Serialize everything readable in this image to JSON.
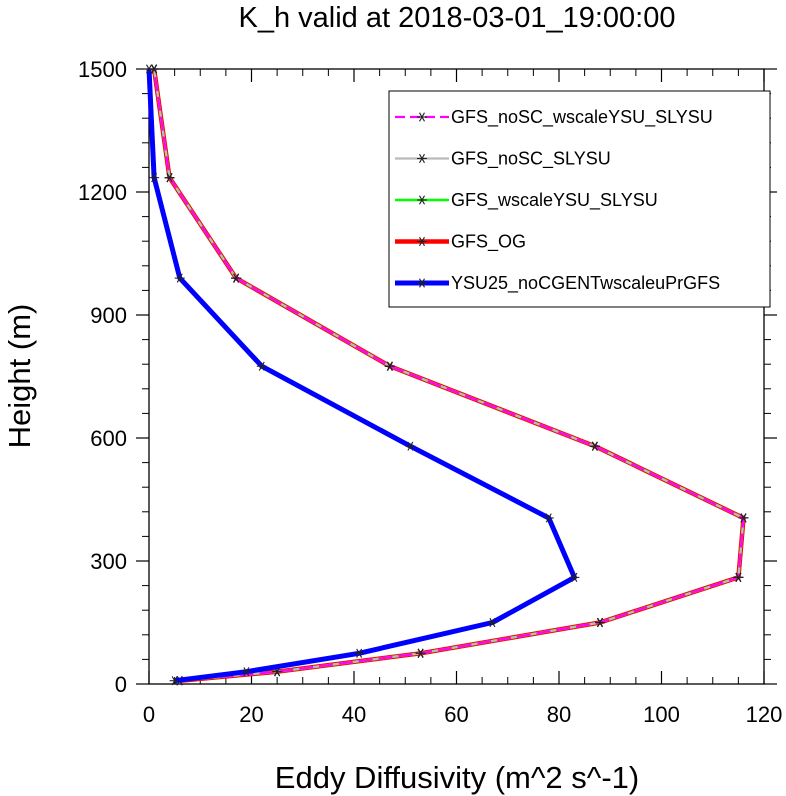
{
  "chart_data": {
    "type": "line",
    "title": "K_h valid at 2018-03-01_19:00:00",
    "xlabel": "Eddy Diffusivity (m^2 s^-1)",
    "ylabel": "Height (m)",
    "xlim": [
      0,
      120
    ],
    "ylim": [
      0,
      1500
    ],
    "xticks": [
      "0",
      "20",
      "40",
      "60",
      "80",
      "100",
      "120"
    ],
    "yticks": [
      "0",
      "300",
      "600",
      "900",
      "1200",
      "1500"
    ],
    "grid": false,
    "legend_position": "top-right",
    "series": [
      {
        "name": "GFS_noSC_wscaleYSU_SLYSU",
        "color": "#ff00ff",
        "dash": "dashed",
        "y": [
          8,
          30,
          75,
          150,
          260,
          405,
          580,
          775,
          990,
          1235,
          1500
        ],
        "x": [
          6,
          25,
          53,
          88,
          115,
          116,
          87,
          47,
          17,
          4,
          1
        ]
      },
      {
        "name": "GFS_noSC_SLYSU",
        "color": "#bbbbbb",
        "dash": "solid",
        "y": [
          8,
          30,
          75,
          150,
          260,
          405,
          580,
          775,
          990,
          1235,
          1500
        ],
        "x": [
          6,
          25,
          53,
          88,
          115,
          116,
          87,
          47,
          17,
          4,
          1
        ]
      },
      {
        "name": "GFS_wscaleYSU_SLYSU",
        "color": "#00ff00",
        "dash": "solid",
        "y": [
          8,
          30,
          75,
          150,
          260,
          405,
          580,
          775,
          990,
          1235,
          1500
        ],
        "x": [
          6,
          25,
          53,
          88,
          115,
          116,
          87,
          47,
          17,
          4,
          1
        ]
      },
      {
        "name": "GFS_OG",
        "color": "#ff0000",
        "dash": "solid",
        "y": [
          8,
          30,
          75,
          150,
          260,
          405,
          580,
          775,
          990,
          1235,
          1500
        ],
        "x": [
          6,
          25,
          53,
          88,
          115,
          116,
          87,
          47,
          17,
          4,
          1
        ]
      },
      {
        "name": "YSU25_noCGENTwscaleuPrGFS",
        "color": "#0000ff",
        "dash": "solid",
        "y": [
          8,
          30,
          75,
          150,
          260,
          405,
          580,
          775,
          990,
          1235,
          1500
        ],
        "x": [
          5,
          19,
          41,
          67,
          83,
          78,
          51,
          22,
          6,
          1,
          0
        ]
      }
    ]
  }
}
